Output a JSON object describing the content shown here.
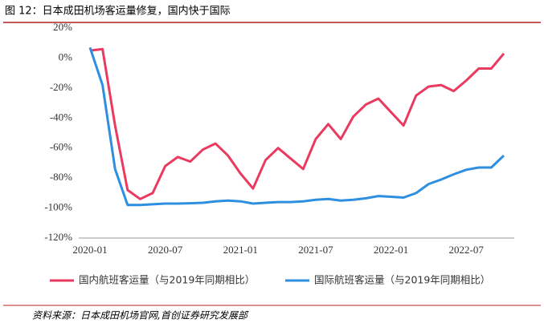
{
  "chart_data": {
    "type": "line",
    "title": "图 12：日本成田机场客运量修复，国内快于国际",
    "source": "资料来源：日本成田机场官网,首创证券研究发展部",
    "categories": [
      "2020-01",
      null,
      null,
      null,
      null,
      null,
      "2020-07",
      null,
      null,
      null,
      null,
      null,
      "2021-01",
      null,
      null,
      null,
      null,
      null,
      "2021-07",
      null,
      null,
      null,
      null,
      null,
      "2022-01",
      null,
      null,
      null,
      null,
      null,
      "2022-07",
      null,
      null,
      null
    ],
    "series": [
      {
        "name": "国内航班客运量（与2019年同期相比）",
        "color": "#ea3a5f",
        "values": [
          5,
          6,
          -45,
          -88,
          -94,
          -90,
          -72,
          -66,
          -69,
          -61,
          -57,
          -65,
          -77,
          -87,
          -68,
          -60,
          -67,
          -74,
          -54,
          -44,
          -54,
          -39,
          -31,
          -27,
          -36,
          -45,
          -25,
          -19,
          -18,
          -22,
          -15,
          -7,
          -7,
          3
        ]
      },
      {
        "name": "国际航班客运量（与2019年同期相比）",
        "color": "#2e8fe0",
        "values": [
          7,
          -18,
          -74,
          -98,
          -98,
          -97.5,
          -97,
          -97,
          -96.8,
          -96.5,
          -95.5,
          -95,
          -95.5,
          -97,
          -96.5,
          -96,
          -96,
          -95.5,
          -94.5,
          -94,
          -95,
          -94.5,
          -93.5,
          -92,
          -92.5,
          -93,
          -90,
          -84,
          -81,
          -77.5,
          -74.5,
          -73,
          -73,
          -65
        ]
      }
    ],
    "ylim": [
      -120,
      20
    ],
    "yticks": [
      {
        "value": 20,
        "label": "20%"
      },
      {
        "value": 0,
        "label": "0%"
      },
      {
        "value": -20,
        "label": "-20%"
      },
      {
        "value": -40,
        "label": "-40%"
      },
      {
        "value": -60,
        "label": "-60%"
      },
      {
        "value": -80,
        "label": "-80%"
      },
      {
        "value": -100,
        "label": "-100%"
      },
      {
        "value": -120,
        "label": "-120%"
      }
    ],
    "legend": "bottom",
    "grid": false
  }
}
